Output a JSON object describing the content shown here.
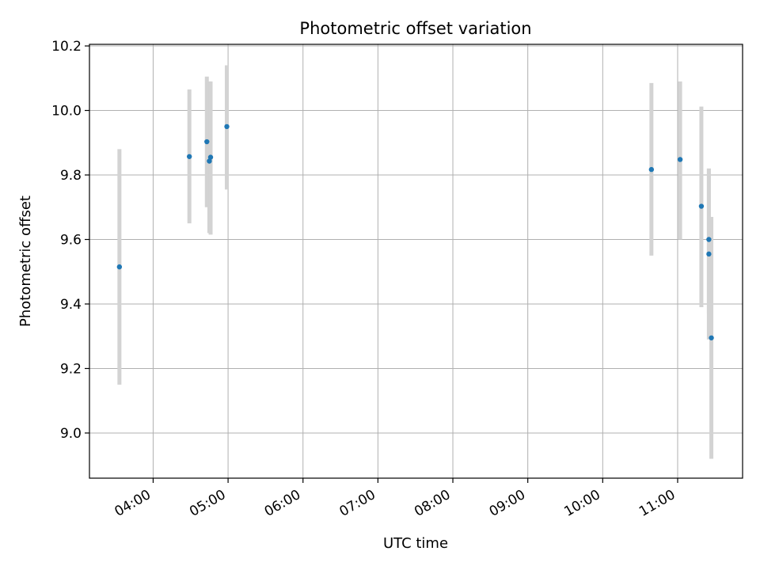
{
  "chart_data": {
    "type": "scatter",
    "title": "Photometric offset variation",
    "xlabel": "UTC time",
    "ylabel": "Photometric offset",
    "x_axis_kind": "time",
    "xlim": [
      "03:09",
      "11:52"
    ],
    "ylim": [
      8.86,
      10.205
    ],
    "xticks": [
      "04:00",
      "05:00",
      "06:00",
      "07:00",
      "08:00",
      "09:00",
      "10:00",
      "11:00"
    ],
    "yticks": [
      "9.0",
      "9.2",
      "9.4",
      "9.6",
      "9.8",
      "10.0",
      "10.2"
    ],
    "grid": true,
    "marker_color": "#1f77b4",
    "errorbar_color": "#d3d3d3",
    "points": [
      {
        "x": "03:33",
        "y": 9.515,
        "ylow": 9.15,
        "yhigh": 9.88
      },
      {
        "x": "04:29",
        "y": 9.857,
        "ylow": 9.65,
        "yhigh": 10.065
      },
      {
        "x": "04:43",
        "y": 9.903,
        "ylow": 9.7,
        "yhigh": 10.105
      },
      {
        "x": "04:45",
        "y": 9.843,
        "ylow": 9.62,
        "yhigh": 10.09
      },
      {
        "x": "04:46",
        "y": 9.855,
        "ylow": 9.615,
        "yhigh": 10.09
      },
      {
        "x": "04:59",
        "y": 9.95,
        "ylow": 9.755,
        "yhigh": 10.14
      },
      {
        "x": "10:39",
        "y": 9.817,
        "ylow": 9.55,
        "yhigh": 10.085
      },
      {
        "x": "11:02",
        "y": 9.848,
        "ylow": 9.6,
        "yhigh": 10.09
      },
      {
        "x": "11:19",
        "y": 9.703,
        "ylow": 9.39,
        "yhigh": 10.012
      },
      {
        "x": "11:25",
        "y": 9.6,
        "ylow": 9.37,
        "yhigh": 9.82
      },
      {
        "x": "11:25",
        "y": 9.555,
        "ylow": 9.29,
        "yhigh": 9.82
      },
      {
        "x": "11:27",
        "y": 9.295,
        "ylow": 8.92,
        "yhigh": 9.67
      }
    ]
  }
}
